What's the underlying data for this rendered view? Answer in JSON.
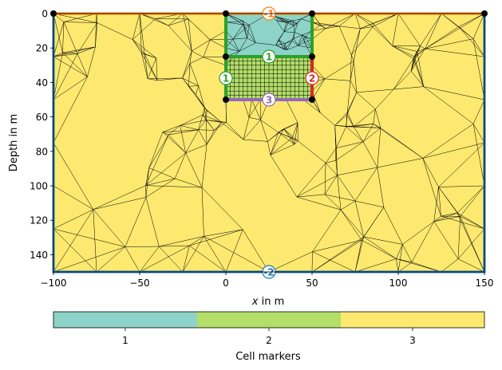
{
  "chart_data": {
    "type": "mesh",
    "xlabel_italic": "x",
    "xlabel_rest": " in m",
    "ylabel": "Depth in m",
    "xlim": [
      -100,
      150
    ],
    "ylim": [
      0,
      150
    ],
    "y_inverted": true,
    "x_ticks": [
      -100,
      -50,
      0,
      50,
      100,
      150
    ],
    "x_tick_labels": [
      "−100",
      "−50",
      "0",
      "50",
      "100",
      "150"
    ],
    "y_ticks": [
      0,
      20,
      40,
      60,
      80,
      100,
      120,
      140
    ],
    "y_tick_labels": [
      "0",
      "20",
      "40",
      "60",
      "80",
      "100",
      "120",
      "140"
    ],
    "regions": [
      {
        "marker": 3,
        "x": [
          -100,
          150
        ],
        "y": [
          0,
          150
        ],
        "color": "#fde96f"
      },
      {
        "marker": 1,
        "x": [
          0,
          50
        ],
        "y": [
          0,
          25
        ],
        "color": "#8dd3c7"
      },
      {
        "marker": 2,
        "x": [
          0,
          50
        ],
        "y": [
          25,
          50
        ],
        "color": "#b3de69"
      }
    ],
    "structured_grid": {
      "x": [
        0,
        50
      ],
      "y": [
        25,
        50
      ],
      "nx": 20,
      "ny": 10
    },
    "boundaries": [
      {
        "marker": "-1",
        "color": "#ff7f0e",
        "points": [
          [
            -100,
            0
          ],
          [
            150,
            0
          ]
        ]
      },
      {
        "marker": "-2",
        "color": "#1f77b4",
        "points": [
          [
            -100,
            0
          ],
          [
            -100,
            150
          ],
          [
            150,
            150
          ],
          [
            150,
            0
          ]
        ]
      },
      {
        "marker": "1",
        "color": "#2ca02c",
        "points": [
          [
            0,
            0
          ],
          [
            0,
            50
          ]
        ]
      },
      {
        "marker": "1",
        "color": "#2ca02c",
        "points": [
          [
            50,
            0
          ],
          [
            50,
            25
          ]
        ]
      },
      {
        "marker": "1",
        "color": "#2ca02c",
        "points": [
          [
            0,
            25
          ],
          [
            50,
            25
          ]
        ]
      },
      {
        "marker": "2",
        "color": "#d62728",
        "points": [
          [
            50,
            25
          ],
          [
            50,
            50
          ]
        ]
      },
      {
        "marker": "3",
        "color": "#9467bd",
        "points": [
          [
            0,
            50
          ],
          [
            50,
            50
          ]
        ]
      }
    ],
    "boundary_labels": [
      {
        "text": "-1",
        "x": 25,
        "y": 0,
        "color": "#ff7f0e"
      },
      {
        "text": "-2",
        "x": 25,
        "y": 150,
        "color": "#1f77b4"
      },
      {
        "text": "1",
        "x": 25,
        "y": 25,
        "color": "#2ca02c"
      },
      {
        "text": "1",
        "x": 0,
        "y": 37.5,
        "color": "#2ca02c"
      },
      {
        "text": "2",
        "x": 50,
        "y": 37.5,
        "color": "#d62728"
      },
      {
        "text": "3",
        "x": 25,
        "y": 50,
        "color": "#9467bd"
      }
    ],
    "nodes": [
      [
        -100,
        0
      ],
      [
        0,
        0
      ],
      [
        50,
        0
      ],
      [
        150,
        0
      ],
      [
        0,
        25
      ],
      [
        50,
        25
      ],
      [
        0,
        50
      ],
      [
        50,
        50
      ]
    ],
    "colorbar": {
      "label": "Cell markers",
      "items": [
        {
          "label": "1",
          "color": "#8dd3c7"
        },
        {
          "label": "2",
          "color": "#b3de69"
        },
        {
          "label": "3",
          "color": "#fde96f"
        }
      ]
    }
  }
}
